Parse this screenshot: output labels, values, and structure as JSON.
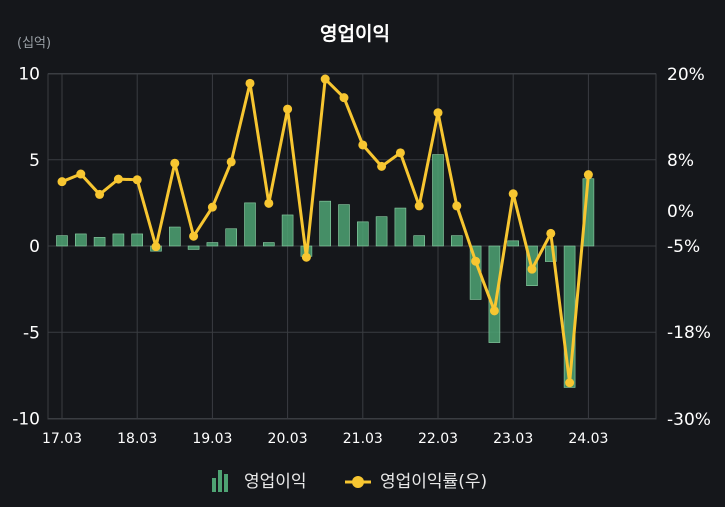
{
  "chart_data": {
    "type": "bar+line",
    "title": "영업이익",
    "left_axis_unit": "(십억)",
    "left_ticks": [
      "10",
      "5",
      "0",
      "-5",
      "-10"
    ],
    "left_tick_values": [
      10,
      5,
      0,
      -5,
      -10
    ],
    "ylim_left": [
      -10,
      10
    ],
    "right_ticks": [
      "20%",
      "8%",
      "0%",
      "-5%",
      "-18%",
      "-30%"
    ],
    "x_tick_labels": [
      "17.03",
      "18.03",
      "19.03",
      "20.03",
      "21.03",
      "22.03",
      "23.03",
      "24.03"
    ],
    "categories": [
      "17.03",
      "17.06",
      "17.09",
      "17.12",
      "18.03",
      "18.06",
      "18.09",
      "18.12",
      "19.03",
      "19.06",
      "19.09",
      "19.12",
      "20.03",
      "20.06",
      "20.09",
      "20.12",
      "21.03",
      "21.06",
      "21.09",
      "21.12",
      "22.03",
      "22.06",
      "22.09",
      "22.12",
      "23.03",
      "23.06",
      "23.09",
      "23.12",
      "24.03"
    ],
    "series": [
      {
        "name": "영업이익",
        "type": "bar",
        "axis": "left",
        "color": "#4ea373",
        "values": [
          0.6,
          0.7,
          0.5,
          0.7,
          0.7,
          -0.3,
          1.1,
          -0.2,
          0.2,
          1.0,
          2.5,
          0.2,
          1.8,
          -0.6,
          2.6,
          2.4,
          1.4,
          1.7,
          2.2,
          0.6,
          5.3,
          0.6,
          -3.1,
          -5.6,
          0.3,
          -2.3,
          -0.9,
          -8.2,
          3.9
        ]
      },
      {
        "name": "영업이익률(우)",
        "type": "line",
        "axis": "right",
        "color": "#f7c631",
        "values": [
          4.6,
          5.8,
          2.6,
          5.0,
          4.9,
          -5.1,
          7.5,
          -3.6,
          0.6,
          7.7,
          18.7,
          1.2,
          15.1,
          -6.7,
          19.3,
          16.7,
          10.1,
          7.0,
          9.0,
          0.8,
          14.6,
          0.8,
          -7.3,
          -14.8,
          2.7,
          -8.5,
          -3.2,
          -25.0,
          5.7
        ]
      }
    ],
    "legend": {
      "position": "bottom-center",
      "labels": [
        "영업이익",
        "영업이익률(우)"
      ]
    },
    "grid": true,
    "colors": {
      "background": "#15171b",
      "grid": "#3a3d42",
      "bar": "#4ea373",
      "bar_edge": "#8fd3a8",
      "line": "#f7c631",
      "unit": "#9aa0a6"
    }
  }
}
